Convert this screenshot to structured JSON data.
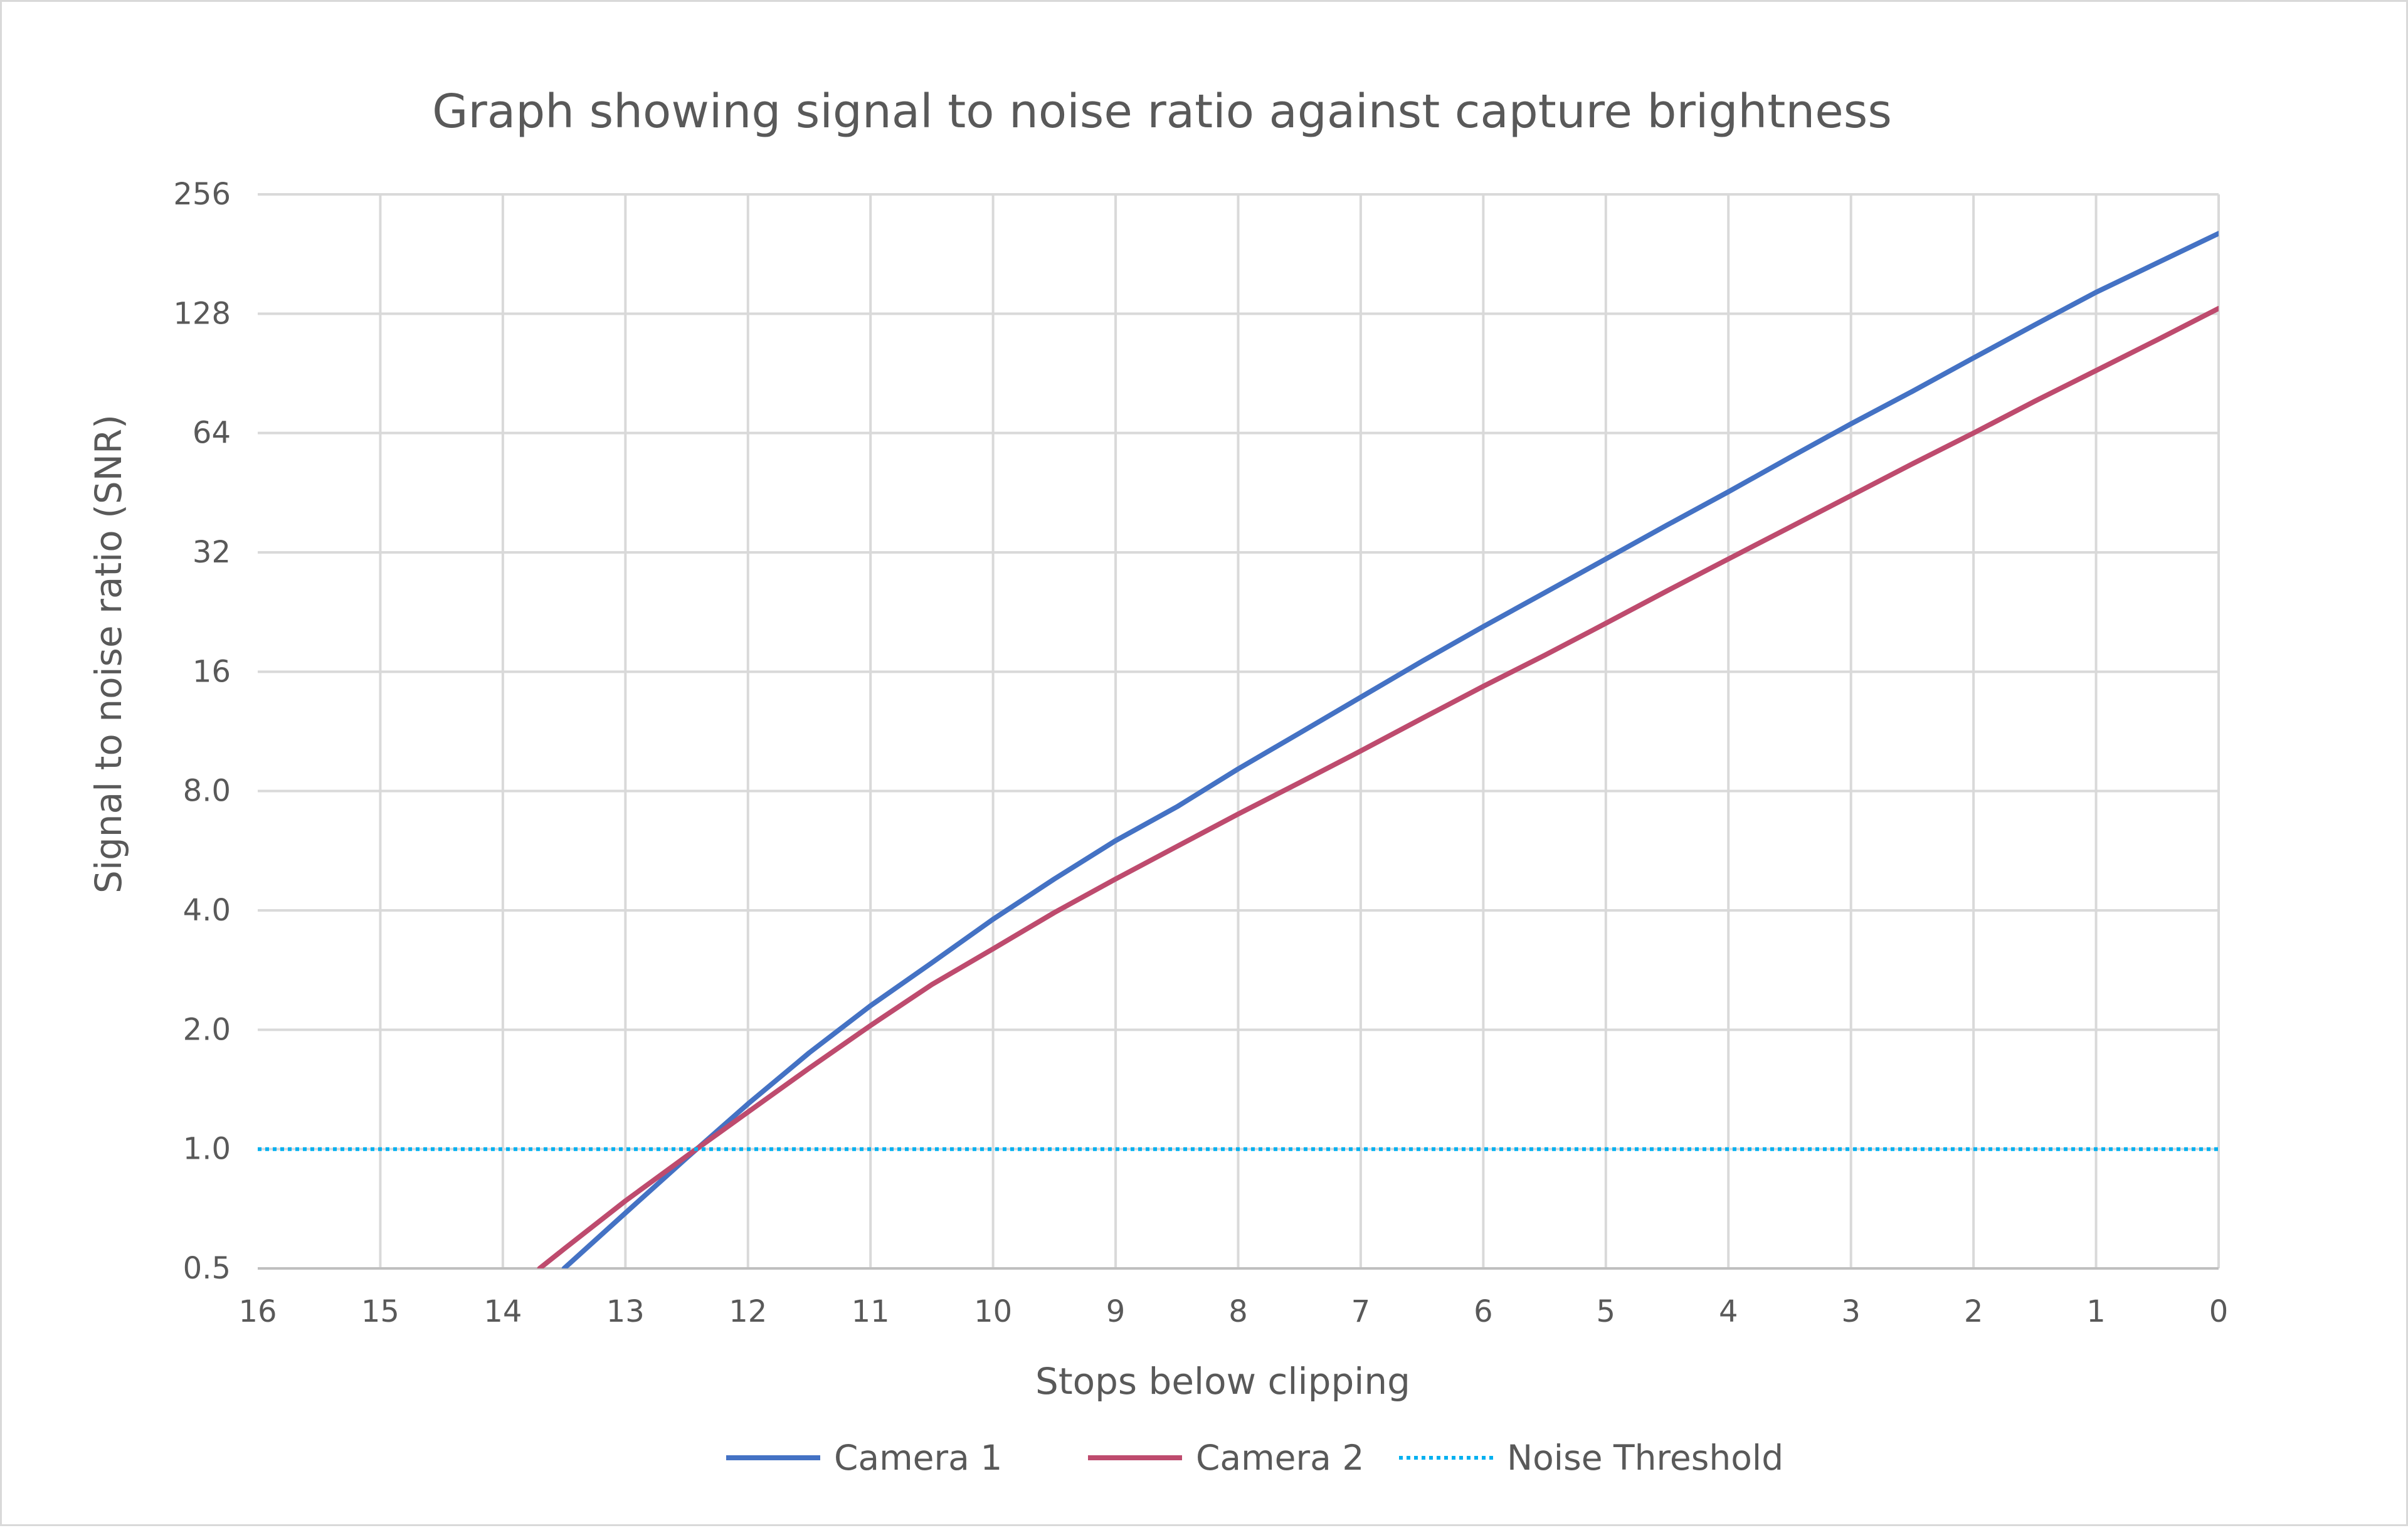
{
  "chart_data": {
    "type": "line",
    "title": "Graph showing signal to noise ratio against capture brightness",
    "xlabel": "Stops below clipping",
    "ylabel": "Signal to noise ratio (SNR)",
    "x_ticks": [
      16,
      15,
      14,
      13,
      12,
      11,
      10,
      9,
      8,
      7,
      6,
      5,
      4,
      3,
      2,
      1,
      0
    ],
    "xlim": [
      16,
      0
    ],
    "x_reversed": true,
    "y_scale": "log2",
    "y_ticks": [
      "0.5",
      "1.0",
      "2.0",
      "4.0",
      "8.0",
      "16",
      "32",
      "64",
      "128",
      "256"
    ],
    "y_tick_values": [
      0.5,
      1,
      2,
      4,
      8,
      16,
      32,
      64,
      128,
      256
    ],
    "ylim": [
      0.5,
      256
    ],
    "grid": true,
    "legend_position": "bottom",
    "series": [
      {
        "name": "Camera 1",
        "color": "#4472c4",
        "style": "solid",
        "x": [
          13.5,
          13,
          12.5,
          12,
          11.5,
          11,
          10.5,
          10,
          9.5,
          9,
          8.5,
          8,
          7.5,
          7,
          6.5,
          6,
          5.5,
          5,
          4.5,
          4,
          3.5,
          3,
          2.5,
          2,
          1.5,
          1,
          0.5,
          0
        ],
        "y": [
          0.5,
          0.69,
          0.95,
          1.3,
          1.75,
          2.3,
          2.95,
          3.8,
          4.8,
          6.0,
          7.3,
          9.1,
          11.2,
          13.8,
          17.0,
          20.8,
          25.3,
          30.8,
          37.5,
          45.5,
          55.5,
          67.5,
          81.5,
          99.0,
          120.0,
          145.0,
          172.0,
          204.0
        ]
      },
      {
        "name": "Camera 2",
        "color": "#be4b6e",
        "style": "solid",
        "x": [
          13.7,
          13.5,
          13,
          12.5,
          12,
          11.5,
          11,
          10.5,
          10,
          9.5,
          9,
          8.5,
          8,
          7.5,
          7,
          6.5,
          6,
          5.5,
          5,
          4.5,
          4,
          3.5,
          3,
          2.5,
          2,
          1.5,
          1,
          0.5,
          0
        ],
        "y": [
          0.5,
          0.56,
          0.74,
          0.96,
          1.24,
          1.6,
          2.05,
          2.6,
          3.2,
          3.95,
          4.8,
          5.8,
          7.0,
          8.4,
          10.1,
          12.2,
          14.7,
          17.6,
          21.2,
          25.6,
          30.8,
          37.0,
          44.5,
          53.5,
          64.0,
          77.0,
          92.0,
          110.0,
          132.0
        ]
      },
      {
        "name": "Noise Threshold",
        "color": "#00b0f0",
        "style": "dotted",
        "x": [
          16,
          0
        ],
        "y": [
          1,
          1
        ]
      }
    ]
  }
}
